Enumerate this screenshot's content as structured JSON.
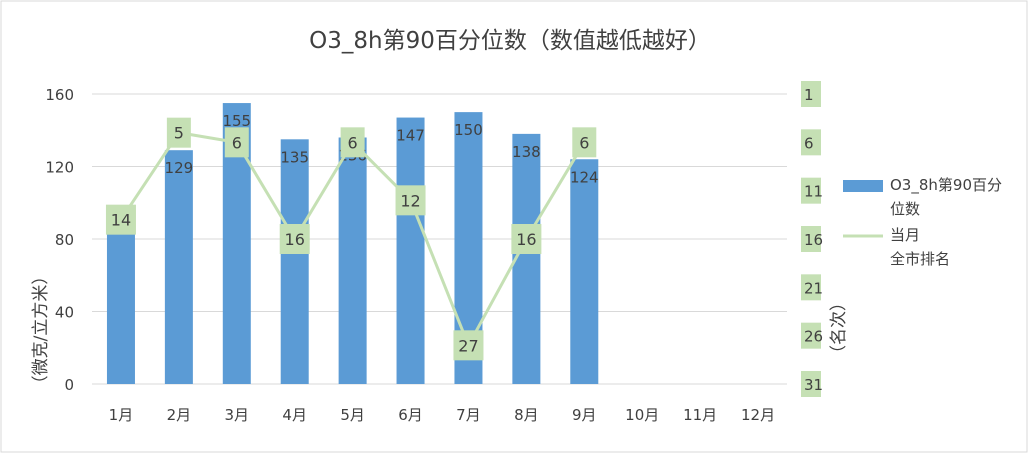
{
  "chart_data": {
    "type": "bar",
    "title": "O3_8h第90百分位数（数值越低越好）",
    "categories": [
      "1月",
      "2月",
      "3月",
      "4月",
      "5月",
      "6月",
      "7月",
      "8月",
      "9月",
      "10月",
      "11月",
      "12月"
    ],
    "ylabel": "（微克/立方米）",
    "y2label": "（名次）",
    "ylim": [
      0,
      160
    ],
    "yticks": [
      0,
      40,
      80,
      120,
      160
    ],
    "y2lim": [
      31,
      1
    ],
    "y2ticks": [
      "1",
      "6",
      "11",
      "16",
      "21",
      "26",
      "31"
    ],
    "grid": true,
    "legend_position": "right",
    "series": [
      {
        "name": "O3_8h第90百分位数",
        "kind": "bar",
        "axis": "left",
        "color": "#5b9bd5",
        "values": [
          98,
          129,
          155,
          135,
          136,
          147,
          150,
          138,
          124,
          null,
          null,
          null
        ]
      },
      {
        "name": "当月全市排名",
        "kind": "line",
        "axis": "right",
        "color": "#c5e0b4",
        "values": [
          14,
          5,
          6,
          16,
          6,
          12,
          27,
          16,
          6,
          null,
          null,
          null
        ]
      }
    ],
    "legend": [
      {
        "lines": [
          "O3_8h第90百分",
          "位数"
        ],
        "marker": "bar",
        "color": "#5b9bd5"
      },
      {
        "lines": [
          "当月",
          "全市排名"
        ],
        "marker": "line",
        "color": "#c5e0b4"
      }
    ]
  }
}
